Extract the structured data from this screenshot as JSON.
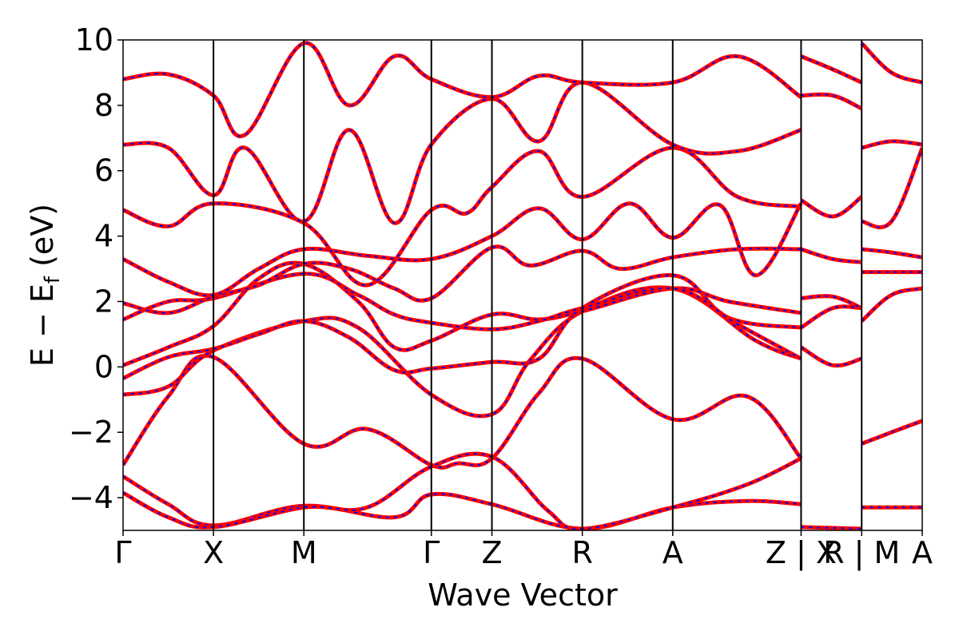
{
  "chart_data": {
    "type": "line",
    "title": "",
    "xlabel": "Wave Vector",
    "ylabel": "E − E",
    "ylabel_sub": "f",
    "ylabel_unit": " (eV)",
    "ylim": [
      -5,
      10
    ],
    "yticks": [
      -4,
      -2,
      0,
      2,
      4,
      6,
      8,
      10
    ],
    "ytick_labels": [
      "−4",
      "−2",
      "0",
      "2",
      "4",
      "6",
      "8",
      "10"
    ],
    "grid": false,
    "colors": {
      "series_a": "#ff0000",
      "series_b": "#0000ff",
      "axes": "#000000"
    },
    "kpath": {
      "x_range": [
        0,
        8.84
      ],
      "segment_breaks": [
        7.5,
        8.17
      ],
      "high_symmetry_points": [
        {
          "label": "Γ",
          "x": 0.0
        },
        {
          "label": "X",
          "x": 1.0
        },
        {
          "label": "M",
          "x": 2.0
        },
        {
          "label": "Γ",
          "x": 3.41
        },
        {
          "label": "Z",
          "x": 4.08
        },
        {
          "label": "R",
          "x": 5.08
        },
        {
          "label": "A",
          "x": 6.08
        },
        {
          "label": "Z | X",
          "x": 7.5
        },
        {
          "label": "R | M",
          "x": 8.17
        },
        {
          "label": "A",
          "x": 8.84
        }
      ]
    },
    "series": [
      {
        "style": "solid-red-under-dashed-blue",
        "bands": [
          [
            [
              0,
              -3.0
            ],
            [
              0.5,
              -0.9
            ],
            [
              1.0,
              0.3
            ],
            [
              2.0,
              -2.35
            ],
            [
              2.7,
              -1.9
            ],
            [
              3.41,
              -3.0
            ],
            [
              3.7,
              -2.95
            ],
            [
              4.08,
              -2.8
            ],
            [
              4.6,
              -0.8
            ],
            [
              5.08,
              0.25
            ],
            [
              6.08,
              -1.6
            ],
            [
              6.9,
              -0.9
            ],
            [
              7.5,
              -2.8
            ]
          ],
          [
            [
              0,
              -0.85
            ],
            [
              0.5,
              -0.6
            ],
            [
              1.0,
              0.5
            ],
            [
              2.0,
              1.4
            ],
            [
              2.6,
              1.2
            ],
            [
              3.41,
              -0.85
            ],
            [
              4.08,
              -1.45
            ],
            [
              4.5,
              0.2
            ],
            [
              5.08,
              1.7
            ],
            [
              6.08,
              2.4
            ],
            [
              7.0,
              0.8
            ],
            [
              7.5,
              0.25
            ]
          ],
          [
            [
              0,
              -0.35
            ],
            [
              0.5,
              0.3
            ],
            [
              1.0,
              0.55
            ],
            [
              1.5,
              1.0
            ],
            [
              2.0,
              1.4
            ],
            [
              2.5,
              0.9
            ],
            [
              3.0,
              -0.1
            ],
            [
              3.41,
              -0.05
            ],
            [
              4.08,
              0.15
            ],
            [
              4.6,
              0.25
            ],
            [
              5.08,
              1.8
            ],
            [
              6.08,
              2.8
            ],
            [
              6.7,
              1.5
            ],
            [
              7.5,
              1.2
            ]
          ],
          [
            [
              0,
              0.05
            ],
            [
              0.5,
              0.6
            ],
            [
              1.0,
              1.25
            ],
            [
              1.5,
              2.7
            ],
            [
              2.0,
              3.15
            ],
            [
              2.6,
              2.0
            ],
            [
              3.0,
              0.6
            ],
            [
              3.41,
              0.8
            ],
            [
              4.08,
              1.6
            ],
            [
              4.6,
              1.45
            ],
            [
              5.08,
              1.7
            ],
            [
              6.08,
              2.4
            ],
            [
              6.7,
              2.0
            ],
            [
              7.5,
              1.65
            ]
          ],
          [
            [
              0,
              1.45
            ],
            [
              0.5,
              2.0
            ],
            [
              1.0,
              2.1
            ],
            [
              2.0,
              2.85
            ],
            [
              2.6,
              2.2
            ],
            [
              3.0,
              1.6
            ],
            [
              3.41,
              1.35
            ],
            [
              4.08,
              1.15
            ],
            [
              4.6,
              1.4
            ],
            [
              5.08,
              1.8
            ],
            [
              6.08,
              2.4
            ],
            [
              6.8,
              1.3
            ],
            [
              7.5,
              0.25
            ]
          ],
          [
            [
              0,
              1.95
            ],
            [
              0.5,
              1.65
            ],
            [
              1.0,
              2.15
            ],
            [
              1.5,
              2.5
            ],
            [
              2.0,
              3.15
            ],
            [
              2.5,
              3.0
            ],
            [
              3.0,
              2.4
            ],
            [
              3.41,
              2.1
            ],
            [
              4.08,
              3.65
            ],
            [
              4.5,
              3.1
            ],
            [
              5.08,
              3.55
            ],
            [
              5.5,
              3.0
            ],
            [
              6.08,
              3.35
            ],
            [
              6.8,
              3.6
            ],
            [
              7.5,
              3.6
            ]
          ],
          [
            [
              0,
              3.3
            ],
            [
              0.5,
              2.6
            ],
            [
              1.0,
              2.2
            ],
            [
              1.5,
              3.0
            ],
            [
              2.0,
              3.6
            ],
            [
              2.7,
              3.4
            ],
            [
              3.41,
              3.3
            ],
            [
              4.08,
              4.0
            ],
            [
              4.6,
              4.85
            ],
            [
              5.08,
              3.9
            ],
            [
              5.6,
              5.0
            ],
            [
              6.08,
              3.95
            ],
            [
              6.6,
              4.95
            ],
            [
              7.0,
              2.8
            ],
            [
              7.5,
              5.0
            ]
          ],
          [
            [
              0,
              4.8
            ],
            [
              0.5,
              4.3
            ],
            [
              1.0,
              5.0
            ],
            [
              2.0,
              4.4
            ],
            [
              2.7,
              2.5
            ],
            [
              3.41,
              4.8
            ],
            [
              3.8,
              4.7
            ],
            [
              4.08,
              5.5
            ],
            [
              4.6,
              6.6
            ],
            [
              5.08,
              5.2
            ],
            [
              6.08,
              6.7
            ],
            [
              6.8,
              5.2
            ],
            [
              7.5,
              4.9
            ]
          ],
          [
            [
              0,
              6.8
            ],
            [
              0.5,
              6.7
            ],
            [
              1.0,
              5.25
            ],
            [
              1.35,
              6.7
            ],
            [
              2.0,
              4.45
            ],
            [
              2.5,
              7.25
            ],
            [
              3.0,
              4.4
            ],
            [
              3.41,
              6.8
            ],
            [
              4.08,
              8.2
            ],
            [
              4.6,
              6.9
            ],
            [
              5.08,
              8.7
            ],
            [
              6.08,
              6.8
            ],
            [
              6.8,
              6.6
            ],
            [
              7.5,
              7.25
            ]
          ],
          [
            [
              0,
              8.8
            ],
            [
              0.5,
              8.95
            ],
            [
              1.0,
              8.3
            ],
            [
              1.35,
              7.1
            ],
            [
              2.0,
              9.9
            ],
            [
              2.5,
              8.0
            ],
            [
              3.0,
              9.5
            ],
            [
              3.41,
              8.8
            ],
            [
              4.08,
              8.25
            ],
            [
              4.6,
              8.9
            ],
            [
              5.08,
              8.7
            ],
            [
              6.08,
              8.7
            ],
            [
              6.8,
              9.5
            ],
            [
              7.5,
              8.25
            ]
          ],
          [
            [
              7.5,
              -4.9
            ],
            [
              8.17,
              -4.95
            ]
          ],
          [
            [
              7.5,
              0.6
            ],
            [
              7.85,
              0.05
            ],
            [
              8.17,
              0.25
            ]
          ],
          [
            [
              7.5,
              1.2
            ],
            [
              7.85,
              1.8
            ],
            [
              8.17,
              1.8
            ]
          ],
          [
            [
              7.5,
              2.1
            ],
            [
              7.85,
              2.15
            ],
            [
              8.17,
              1.8
            ]
          ],
          [
            [
              7.5,
              3.6
            ],
            [
              7.85,
              3.3
            ],
            [
              8.17,
              3.2
            ]
          ],
          [
            [
              7.5,
              5.1
            ],
            [
              7.85,
              4.6
            ],
            [
              8.17,
              5.2
            ]
          ],
          [
            [
              7.5,
              8.3
            ],
            [
              7.85,
              8.3
            ],
            [
              8.17,
              7.9
            ]
          ],
          [
            [
              7.5,
              9.5
            ],
            [
              7.85,
              9.1
            ],
            [
              8.17,
              8.7
            ]
          ],
          [
            [
              8.17,
              -4.3
            ],
            [
              8.5,
              -4.3
            ],
            [
              8.84,
              -4.3
            ]
          ],
          [
            [
              8.17,
              -2.35
            ],
            [
              8.5,
              -2.0
            ],
            [
              8.84,
              -1.65
            ]
          ],
          [
            [
              8.17,
              1.4
            ],
            [
              8.5,
              2.2
            ],
            [
              8.84,
              2.4
            ]
          ],
          [
            [
              8.17,
              2.9
            ],
            [
              8.5,
              2.9
            ],
            [
              8.84,
              2.9
            ]
          ],
          [
            [
              8.17,
              3.6
            ],
            [
              8.5,
              3.5
            ],
            [
              8.84,
              3.35
            ]
          ],
          [
            [
              8.17,
              4.45
            ],
            [
              8.5,
              4.45
            ],
            [
              8.84,
              6.7
            ]
          ],
          [
            [
              8.17,
              6.7
            ],
            [
              8.5,
              6.9
            ],
            [
              8.84,
              6.8
            ]
          ],
          [
            [
              8.17,
              9.9
            ],
            [
              8.5,
              9.0
            ],
            [
              8.84,
              8.7
            ]
          ],
          [
            [
              0,
              -3.35
            ],
            [
              0.5,
              -4.2
            ],
            [
              1.0,
              -4.85
            ],
            [
              2.0,
              -4.25
            ],
            [
              3.0,
              -4.6
            ],
            [
              3.41,
              -3.9
            ],
            [
              4.08,
              -4.2
            ],
            [
              5.08,
              -4.95
            ],
            [
              6.08,
              -4.3
            ],
            [
              6.9,
              -4.1
            ],
            [
              7.5,
              -4.2
            ]
          ],
          [
            [
              0,
              -3.85
            ],
            [
              0.5,
              -4.6
            ],
            [
              1.0,
              -4.9
            ],
            [
              2.0,
              -4.3
            ],
            [
              2.7,
              -4.3
            ],
            [
              3.41,
              -3.05
            ],
            [
              4.08,
              -2.75
            ],
            [
              4.7,
              -4.4
            ],
            [
              5.08,
              -4.95
            ],
            [
              6.08,
              -4.3
            ],
            [
              6.9,
              -3.6
            ],
            [
              7.5,
              -2.8
            ]
          ]
        ]
      }
    ]
  }
}
